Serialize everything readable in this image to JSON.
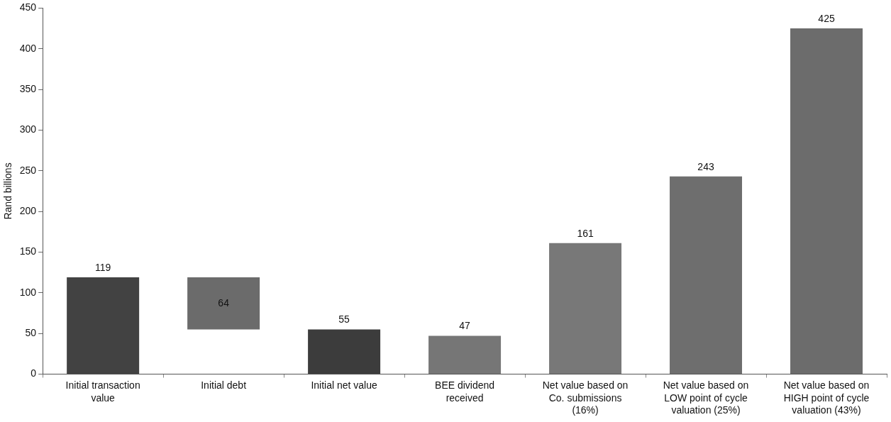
{
  "chart_data": {
    "type": "bar",
    "ylabel": "Rand billions",
    "categories": [
      "Initial transaction value",
      "Initial debt",
      "Initial net value",
      "BEE dividend received",
      "Net value based on Co. submissions (16%)",
      "Net value based on LOW point of cycle valuation (25%)",
      "Net value based on HIGH point of cycle valuation (43%)"
    ],
    "values": [
      119,
      64,
      55,
      47,
      161,
      243,
      425
    ],
    "base": [
      0,
      55,
      0,
      0,
      0,
      0,
      0
    ],
    "colors": [
      "#424242",
      "#6b6b6b",
      "#3c3c3c",
      "#767676",
      "#787878",
      "#6e6e6e",
      "#6c6c6c"
    ],
    "ylim": [
      0,
      450
    ],
    "yticks": [
      0,
      50,
      100,
      150,
      200,
      250,
      300,
      350,
      400,
      450
    ],
    "grid": false,
    "legend": false,
    "data_labels": true
  }
}
